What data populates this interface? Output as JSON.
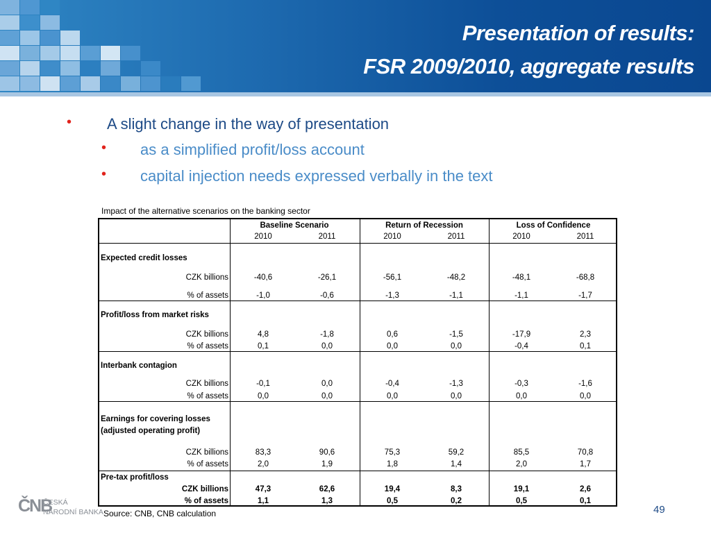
{
  "slide": {
    "title_line1": "Presentation of results:",
    "title_line2": "FSR 2009/2010, aggregate results",
    "page_number": "49"
  },
  "bullets": {
    "main": "A slight change in the way of presentation",
    "sub": [
      "as a simplified profit/loss account",
      "capital injection needs expressed verbally in the text"
    ],
    "bullet_color": "#e1231c"
  },
  "table": {
    "caption": "Impact of the alternative scenarios on the banking sector",
    "scenarios": [
      "Baseline Scenario",
      "Return of Recession",
      "Loss of Confidence"
    ],
    "years": [
      "2010",
      "2011",
      "2010",
      "2011",
      "2010",
      "2011"
    ],
    "sections": [
      {
        "title": [
          "Expected credit losses"
        ],
        "rows": [
          {
            "label": "CZK billions",
            "values": [
              "-40,6",
              "-26,1",
              "-56,1",
              "-48,2",
              "-48,1",
              "-68,8"
            ]
          },
          {
            "label": "% of assets",
            "values": [
              "-1,0",
              "-0,6",
              "-1,3",
              "-1,1",
              "-1,1",
              "-1,7"
            ]
          }
        ]
      },
      {
        "title": [
          "Profit/loss from market risks"
        ],
        "rows": [
          {
            "label": "CZK billions",
            "values": [
              "4,8",
              "-1,8",
              "0,6",
              "-1,5",
              "-17,9",
              "2,3"
            ]
          },
          {
            "label": "% of assets",
            "values": [
              "0,1",
              "0,0",
              "0,0",
              "0,0",
              "-0,4",
              "0,1"
            ]
          }
        ]
      },
      {
        "title": [
          "Interbank contagion"
        ],
        "rows": [
          {
            "label": "CZK billions",
            "values": [
              "-0,1",
              "0,0",
              "-0,4",
              "-1,3",
              "-0,3",
              "-1,6"
            ]
          },
          {
            "label": "% of assets",
            "values": [
              "0,0",
              "0,0",
              "0,0",
              "0,0",
              "0,0",
              "0,0"
            ]
          }
        ]
      },
      {
        "title": [
          "Earnings for covering losses",
          "(adjusted operating profit)"
        ],
        "rows": [
          {
            "label": "CZK billions",
            "values": [
              "83,3",
              "90,6",
              "75,3",
              "59,2",
              "85,5",
              "70,8"
            ]
          },
          {
            "label": "% of assets",
            "values": [
              "2,0",
              "1,9",
              "1,8",
              "1,4",
              "2,0",
              "1,7"
            ]
          }
        ]
      },
      {
        "title": [
          "Pre-tax profit/loss"
        ],
        "bold": true,
        "rows": [
          {
            "label": "CZK billions",
            "values": [
              "47,3",
              "62,6",
              "19,4",
              "8,3",
              "19,1",
              "2,6"
            ]
          },
          {
            "label": "% of assets",
            "values": [
              "1,1",
              "1,3",
              "0,5",
              "0,2",
              "0,5",
              "0,1"
            ]
          }
        ]
      }
    ],
    "source": "Source: CNB, CNB calculation"
  },
  "logo": {
    "mark": "ČNB",
    "line1": "ČESKÁ",
    "line2": "NÁRODNÍ BANKA"
  },
  "colors": {
    "header_blue": "#0d4f98",
    "title_text": "#ffffff",
    "main_bullet_text": "#1d4a86",
    "sub_bullet_text": "#4a8cc8"
  }
}
